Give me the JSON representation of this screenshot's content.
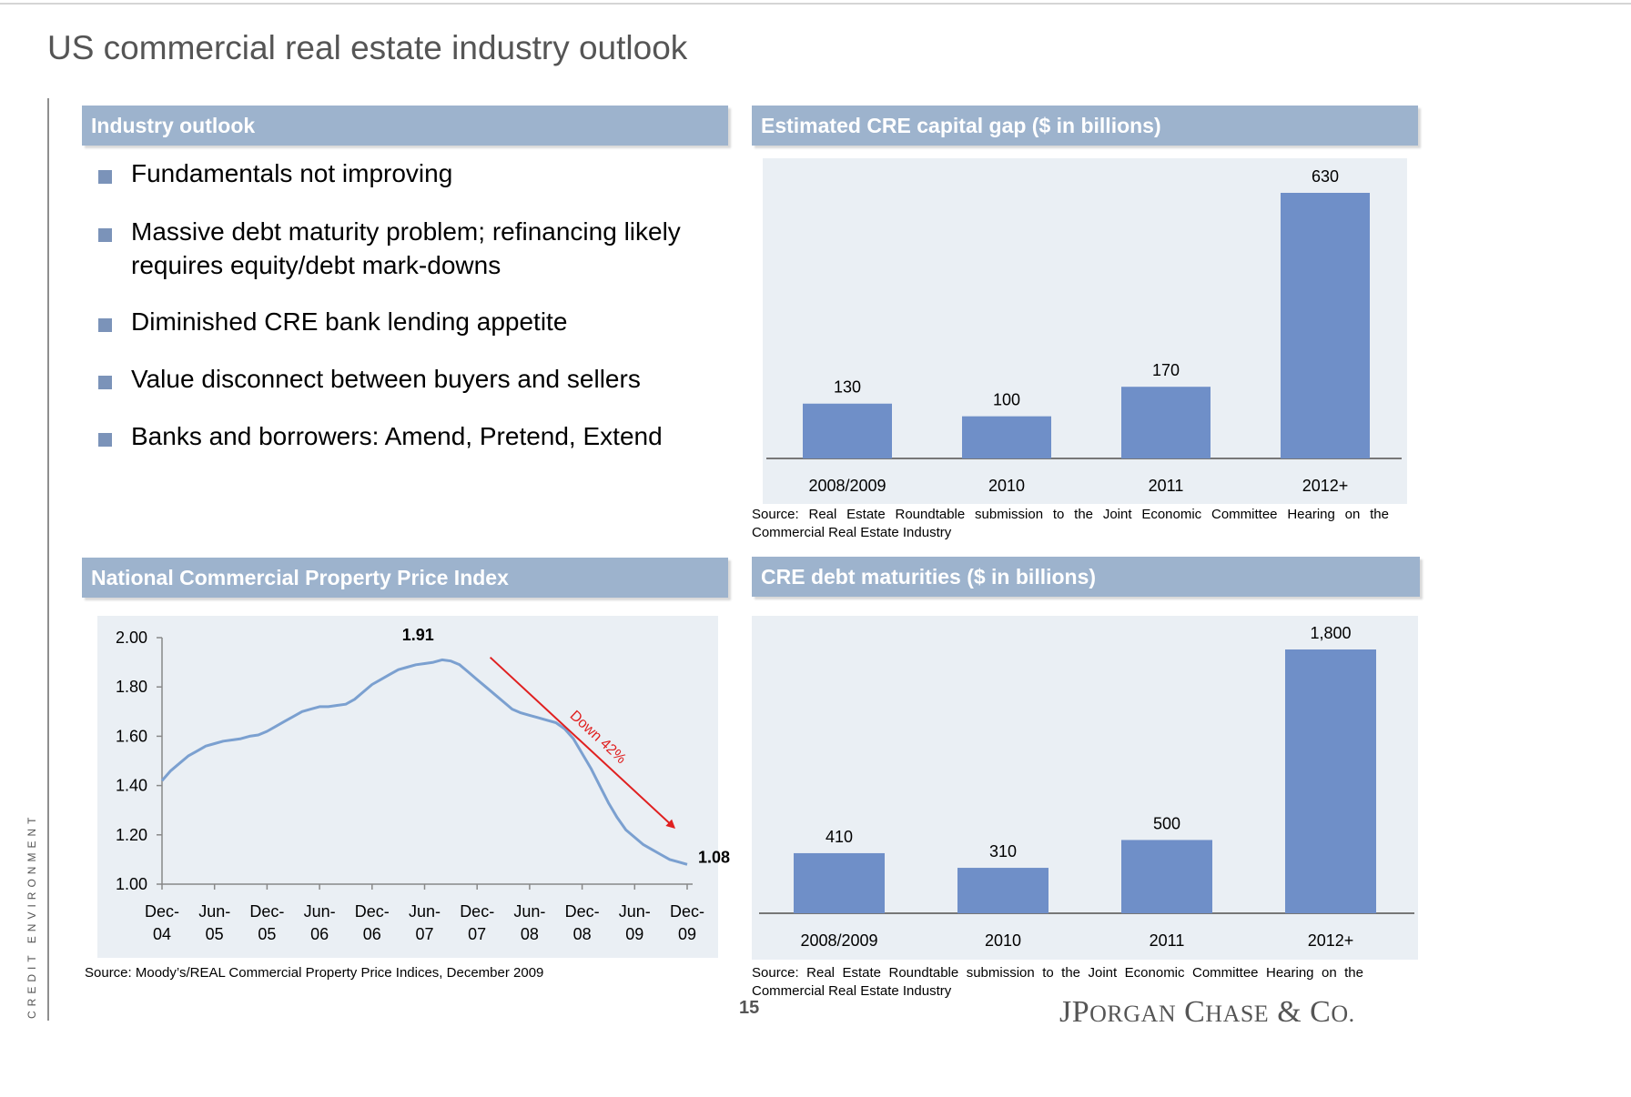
{
  "page": {
    "title": "US commercial real estate industry outlook",
    "side_label": "CREDIT ENVIRONMENT",
    "page_number": "15",
    "logo": {
      "J": "J",
      "P": "P",
      "organ": "ORGAN",
      "C": "C",
      "hase": "HASE",
      "amp": "&",
      "co": "C",
      "co_rest": "O."
    }
  },
  "outlook": {
    "header": "Industry outlook",
    "bullets": [
      "Fundamentals not improving",
      "Massive debt maturity problem; refinancing likely requires equity/debt mark-downs",
      "Diminished CRE bank lending appetite",
      "Value disconnect between buyers and sellers",
      "Banks and borrowers: Amend, Pretend, Extend"
    ]
  },
  "capital_gap": {
    "header": "Estimated CRE capital gap ($ in billions)",
    "source": "Source:  Real Estate Roundtable submission to the Joint Economic Committee Hearing on the Commercial Real Estate Industry"
  },
  "price_index": {
    "header": "National Commercial Property Price Index",
    "source": "Source: Moody’s/REAL Commercial Property Price Indices, December 2009"
  },
  "debt_maturities": {
    "header": "CRE debt maturities ($ in billions)",
    "source": "Source:  Real Estate Roundtable submission to the Joint Economic Committee Hearing on the Commercial Real Estate Industry"
  },
  "colors": {
    "bar": "#6f8fc8",
    "line": "#7ba0d0",
    "arrow": "#e02020",
    "header_bg": "#9db3cd",
    "chart_bg": "#eaeff4"
  },
  "chart_data": [
    {
      "id": "capital_gap",
      "type": "bar",
      "categories": [
        "2008/2009",
        "2010",
        "2011",
        "2012+"
      ],
      "values": [
        130,
        100,
        170,
        630
      ],
      "data_labels": [
        "130",
        "100",
        "170",
        "630"
      ],
      "ylim": [
        0,
        630
      ]
    },
    {
      "id": "price_index",
      "type": "line",
      "x_tick_labels": [
        [
          "Dec-",
          "04"
        ],
        [
          "Jun-",
          "05"
        ],
        [
          "Dec-",
          "05"
        ],
        [
          "Jun-",
          "06"
        ],
        [
          "Dec-",
          "06"
        ],
        [
          "Jun-",
          "07"
        ],
        [
          "Dec-",
          "07"
        ],
        [
          "Jun-",
          "08"
        ],
        [
          "Dec-",
          "08"
        ],
        [
          "Jun-",
          "09"
        ],
        [
          "Dec-",
          "09"
        ]
      ],
      "y_tick_labels": [
        "2.00",
        "1.80",
        "1.60",
        "1.40",
        "1.20",
        "1.00"
      ],
      "ylim": [
        1.0,
        2.0
      ],
      "y_ticks": [
        2.0,
        1.8,
        1.6,
        1.4,
        1.2,
        1.0
      ],
      "x_range": [
        0,
        60
      ],
      "series": [
        {
          "x": [
            0,
            1,
            2,
            3,
            4,
            5,
            6,
            7,
            8,
            9,
            10,
            11,
            12,
            13,
            14,
            15,
            16,
            17,
            18,
            19,
            20,
            21,
            22,
            23,
            24,
            25,
            26,
            27,
            28,
            29,
            30,
            31,
            32,
            33,
            34,
            35,
            36,
            37,
            38,
            39,
            40,
            41,
            42,
            43,
            44,
            45,
            46,
            47,
            48,
            49,
            50,
            51,
            52,
            53,
            54,
            55,
            56,
            57,
            58,
            59,
            60
          ],
          "values": [
            1.42,
            1.46,
            1.49,
            1.52,
            1.54,
            1.56,
            1.57,
            1.58,
            1.585,
            1.59,
            1.6,
            1.605,
            1.62,
            1.64,
            1.66,
            1.68,
            1.7,
            1.71,
            1.72,
            1.72,
            1.725,
            1.73,
            1.75,
            1.78,
            1.81,
            1.83,
            1.85,
            1.87,
            1.88,
            1.89,
            1.895,
            1.9,
            1.91,
            1.905,
            1.89,
            1.86,
            1.83,
            1.8,
            1.77,
            1.74,
            1.71,
            1.695,
            1.685,
            1.675,
            1.665,
            1.655,
            1.63,
            1.59,
            1.53,
            1.47,
            1.4,
            1.33,
            1.27,
            1.22,
            1.19,
            1.16,
            1.14,
            1.12,
            1.1,
            1.09,
            1.08
          ]
        }
      ],
      "annotations": {
        "peak_label": "1.91",
        "end_label": "1.08",
        "arrow_label": "Down 42%",
        "arrow_from": [
          37.5,
          1.92
        ],
        "arrow_to": [
          58.5,
          1.23
        ]
      }
    },
    {
      "id": "debt_maturities",
      "type": "bar",
      "categories": [
        "2008/2009",
        "2010",
        "2011",
        "2012+"
      ],
      "values": [
        410,
        310,
        500,
        1800
      ],
      "data_labels": [
        "410",
        "310",
        "500",
        "1,800"
      ],
      "ylim": [
        0,
        1800
      ]
    }
  ]
}
